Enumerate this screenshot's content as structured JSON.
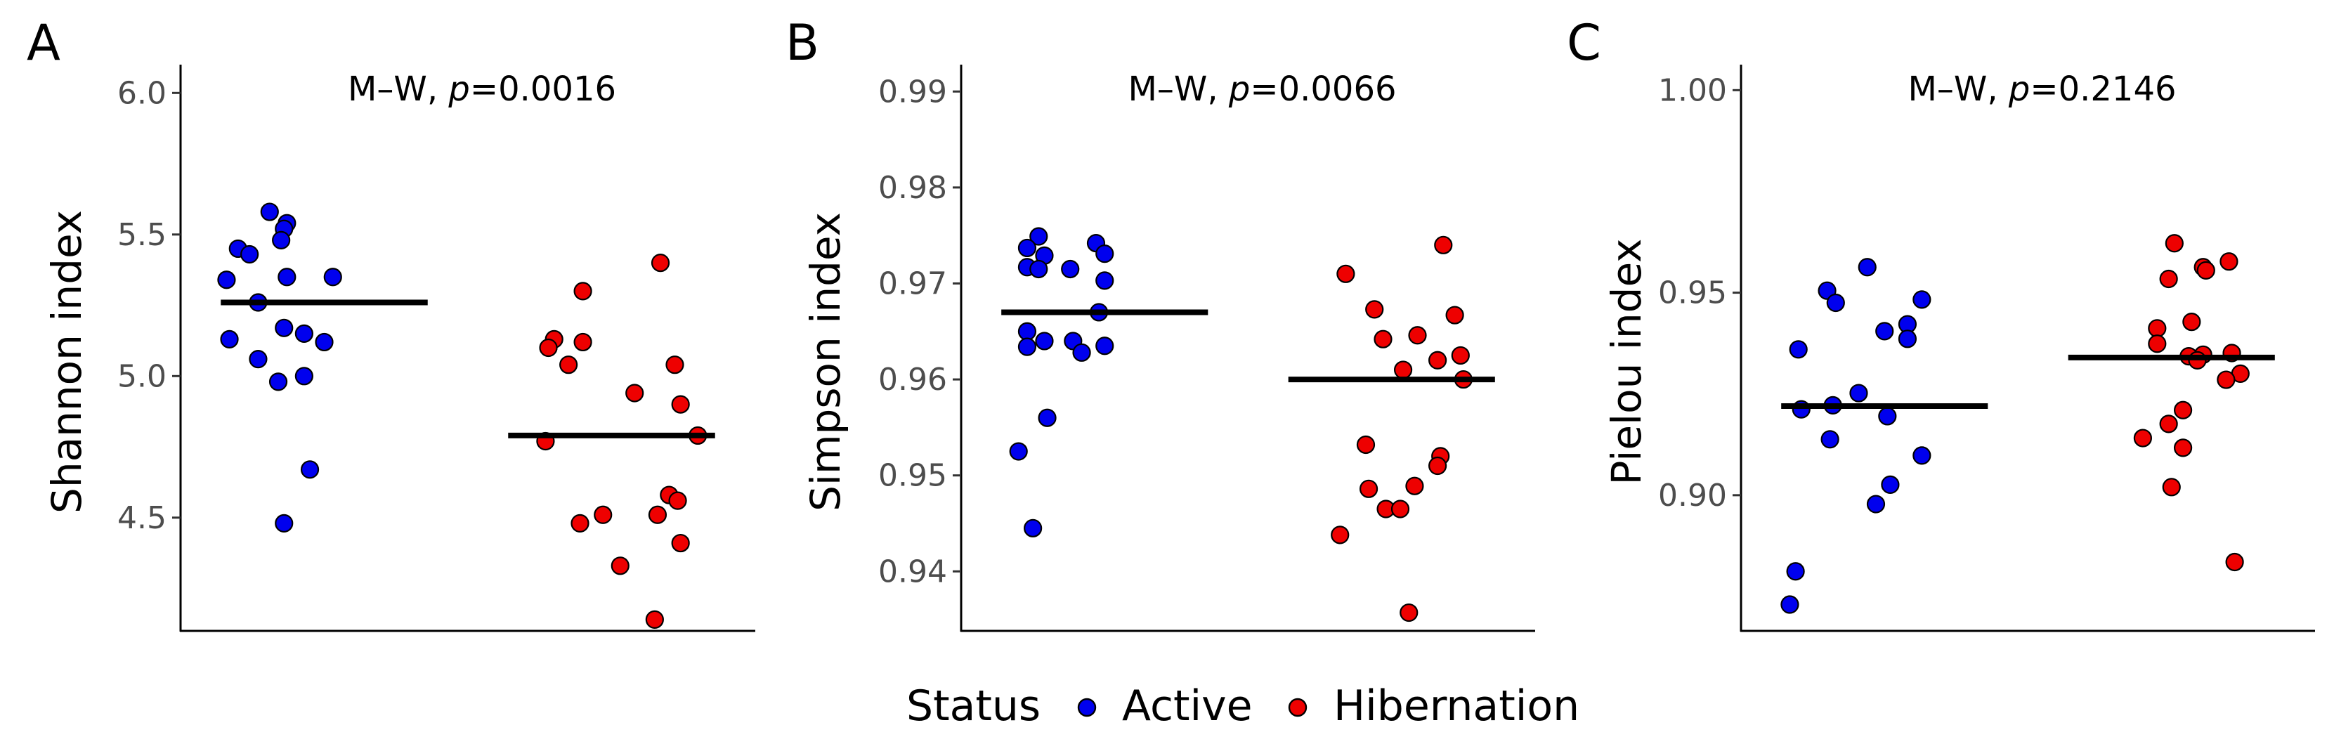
{
  "chart_data": [
    {
      "type": "scatter",
      "panel_label": "A",
      "title": "",
      "xlabel": "",
      "ylabel": "Shannon index",
      "ylim": [
        4.1,
        6.1
      ],
      "yticks": [
        4.5,
        5.0,
        5.5,
        6.0
      ],
      "ytick_labels": [
        "4.5",
        "5.0",
        "5.5",
        "6.0"
      ],
      "annotation_prefix": "M–W, ",
      "annotation_p": "p",
      "annotation_value": "=0.0016",
      "groups": [
        "Active",
        "Hibernation"
      ],
      "series": [
        {
          "name": "Active",
          "mean": 5.26,
          "points": [
            {
              "jitter": -0.19,
              "y": 5.58
            },
            {
              "jitter": -0.13,
              "y": 5.54
            },
            {
              "jitter": -0.14,
              "y": 5.52
            },
            {
              "jitter": -0.3,
              "y": 5.45
            },
            {
              "jitter": -0.26,
              "y": 5.43
            },
            {
              "jitter": -0.15,
              "y": 5.48
            },
            {
              "jitter": -0.13,
              "y": 5.35
            },
            {
              "jitter": 0.03,
              "y": 5.35
            },
            {
              "jitter": -0.34,
              "y": 5.34
            },
            {
              "jitter": -0.23,
              "y": 5.26
            },
            {
              "jitter": -0.14,
              "y": 5.17
            },
            {
              "jitter": -0.07,
              "y": 5.15
            },
            {
              "jitter": -0.33,
              "y": 5.13
            },
            {
              "jitter": 0.0,
              "y": 5.12
            },
            {
              "jitter": -0.23,
              "y": 5.06
            },
            {
              "jitter": -0.07,
              "y": 5.0
            },
            {
              "jitter": -0.16,
              "y": 4.98
            },
            {
              "jitter": -0.05,
              "y": 4.67
            },
            {
              "jitter": -0.14,
              "y": 4.48
            }
          ]
        },
        {
          "name": "Hibernation",
          "mean": 4.79,
          "points": [
            {
              "jitter": 0.17,
              "y": 5.4
            },
            {
              "jitter": -0.1,
              "y": 5.3
            },
            {
              "jitter": -0.2,
              "y": 5.13
            },
            {
              "jitter": -0.1,
              "y": 5.12
            },
            {
              "jitter": -0.22,
              "y": 5.1
            },
            {
              "jitter": -0.15,
              "y": 5.04
            },
            {
              "jitter": 0.22,
              "y": 5.04
            },
            {
              "jitter": 0.08,
              "y": 4.94
            },
            {
              "jitter": 0.24,
              "y": 4.9
            },
            {
              "jitter": 0.3,
              "y": 4.79
            },
            {
              "jitter": -0.23,
              "y": 4.77
            },
            {
              "jitter": 0.2,
              "y": 4.58
            },
            {
              "jitter": 0.23,
              "y": 4.56
            },
            {
              "jitter": 0.16,
              "y": 4.51
            },
            {
              "jitter": -0.03,
              "y": 4.51
            },
            {
              "jitter": -0.11,
              "y": 4.48
            },
            {
              "jitter": 0.24,
              "y": 4.41
            },
            {
              "jitter": 0.03,
              "y": 4.33
            },
            {
              "jitter": 0.15,
              "y": 4.14
            }
          ]
        }
      ]
    },
    {
      "type": "scatter",
      "panel_label": "B",
      "title": "",
      "xlabel": "",
      "ylabel": "Simpson index",
      "ylim": [
        0.9338,
        0.9928
      ],
      "yticks": [
        0.94,
        0.95,
        0.96,
        0.97,
        0.98,
        0.99
      ],
      "ytick_labels": [
        "0.94",
        "0.95",
        "0.96",
        "0.97",
        "0.98",
        "0.99"
      ],
      "annotation_prefix": "M–W, ",
      "annotation_p": "p",
      "annotation_value": "=0.0066",
      "groups": [
        "Active",
        "Hibernation"
      ],
      "series": [
        {
          "name": "Active",
          "mean": 0.967,
          "points": [
            {
              "jitter": -0.23,
              "y": 0.9749
            },
            {
              "jitter": -0.03,
              "y": 0.9742
            },
            {
              "jitter": -0.27,
              "y": 0.9737
            },
            {
              "jitter": 0.0,
              "y": 0.9731
            },
            {
              "jitter": -0.21,
              "y": 0.9729
            },
            {
              "jitter": -0.27,
              "y": 0.9717
            },
            {
              "jitter": -0.12,
              "y": 0.9715
            },
            {
              "jitter": -0.23,
              "y": 0.9715
            },
            {
              "jitter": 0.0,
              "y": 0.9703
            },
            {
              "jitter": -0.02,
              "y": 0.967
            },
            {
              "jitter": -0.27,
              "y": 0.965
            },
            {
              "jitter": -0.11,
              "y": 0.964
            },
            {
              "jitter": -0.21,
              "y": 0.964
            },
            {
              "jitter": 0.0,
              "y": 0.9635
            },
            {
              "jitter": -0.27,
              "y": 0.9634
            },
            {
              "jitter": -0.08,
              "y": 0.9628
            },
            {
              "jitter": -0.2,
              "y": 0.956
            },
            {
              "jitter": -0.3,
              "y": 0.9525
            },
            {
              "jitter": -0.25,
              "y": 0.9445
            }
          ]
        },
        {
          "name": "Hibernation",
          "mean": 0.96,
          "points": [
            {
              "jitter": 0.18,
              "y": 0.974
            },
            {
              "jitter": -0.16,
              "y": 0.971
            },
            {
              "jitter": -0.06,
              "y": 0.9673
            },
            {
              "jitter": 0.22,
              "y": 0.9667
            },
            {
              "jitter": 0.09,
              "y": 0.9646
            },
            {
              "jitter": -0.03,
              "y": 0.9642
            },
            {
              "jitter": 0.24,
              "y": 0.9625
            },
            {
              "jitter": 0.16,
              "y": 0.962
            },
            {
              "jitter": 0.04,
              "y": 0.961
            },
            {
              "jitter": 0.25,
              "y": 0.96
            },
            {
              "jitter": -0.09,
              "y": 0.9532
            },
            {
              "jitter": 0.17,
              "y": 0.952
            },
            {
              "jitter": 0.16,
              "y": 0.951
            },
            {
              "jitter": 0.08,
              "y": 0.9489
            },
            {
              "jitter": -0.08,
              "y": 0.9486
            },
            {
              "jitter": -0.02,
              "y": 0.9465
            },
            {
              "jitter": 0.03,
              "y": 0.9465
            },
            {
              "jitter": -0.18,
              "y": 0.9438
            },
            {
              "jitter": 0.06,
              "y": 0.9357
            }
          ]
        }
      ]
    },
    {
      "type": "scatter",
      "panel_label": "C",
      "title": "",
      "xlabel": "",
      "ylabel": "Pielou index",
      "ylim": [
        0.8665,
        1.0063
      ],
      "yticks": [
        0.9,
        0.95,
        1.0
      ],
      "ytick_labels": [
        "0.90",
        "0.95",
        "1.00"
      ],
      "annotation_prefix": "M–W, ",
      "annotation_p": "p",
      "annotation_value": "=0.2146",
      "groups": [
        "Active",
        "Hibernation"
      ],
      "series": [
        {
          "name": "Active",
          "mean": 0.922,
          "points": [
            {
              "jitter": -0.06,
              "y": 0.9563
            },
            {
              "jitter": -0.2,
              "y": 0.9505
            },
            {
              "jitter": -0.17,
              "y": 0.9475
            },
            {
              "jitter": 0.13,
              "y": 0.9483
            },
            {
              "jitter": 0.08,
              "y": 0.9422
            },
            {
              "jitter": 0.0,
              "y": 0.9405
            },
            {
              "jitter": 0.08,
              "y": 0.9386
            },
            {
              "jitter": -0.3,
              "y": 0.936
            },
            {
              "jitter": -0.09,
              "y": 0.9252
            },
            {
              "jitter": -0.18,
              "y": 0.9222
            },
            {
              "jitter": -0.29,
              "y": 0.9212
            },
            {
              "jitter": 0.01,
              "y": 0.9195
            },
            {
              "jitter": -0.19,
              "y": 0.9138
            },
            {
              "jitter": 0.13,
              "y": 0.9098
            },
            {
              "jitter": 0.02,
              "y": 0.9026
            },
            {
              "jitter": -0.03,
              "y": 0.8978
            },
            {
              "jitter": -0.31,
              "y": 0.8812
            },
            {
              "jitter": -0.33,
              "y": 0.873
            }
          ]
        },
        {
          "name": "Hibernation",
          "mean": 0.934,
          "points": [
            {
              "jitter": 0.01,
              "y": 0.9622
            },
            {
              "jitter": 0.2,
              "y": 0.9577
            },
            {
              "jitter": 0.11,
              "y": 0.9563
            },
            {
              "jitter": 0.12,
              "y": 0.9555
            },
            {
              "jitter": -0.01,
              "y": 0.9534
            },
            {
              "jitter": 0.07,
              "y": 0.9428
            },
            {
              "jitter": -0.05,
              "y": 0.9412
            },
            {
              "jitter": -0.05,
              "y": 0.9374
            },
            {
              "jitter": 0.21,
              "y": 0.9351
            },
            {
              "jitter": 0.11,
              "y": 0.9347
            },
            {
              "jitter": 0.06,
              "y": 0.9343
            },
            {
              "jitter": 0.09,
              "y": 0.9333
            },
            {
              "jitter": 0.24,
              "y": 0.93
            },
            {
              "jitter": 0.19,
              "y": 0.9285
            },
            {
              "jitter": 0.04,
              "y": 0.921
            },
            {
              "jitter": -0.01,
              "y": 0.9176
            },
            {
              "jitter": -0.1,
              "y": 0.9141
            },
            {
              "jitter": 0.04,
              "y": 0.9117
            },
            {
              "jitter": 0.0,
              "y": 0.902
            },
            {
              "jitter": 0.22,
              "y": 0.8835
            }
          ]
        }
      ]
    }
  ],
  "legend": {
    "title": "Status",
    "entries": [
      {
        "label": "Active",
        "color": "#0000ee"
      },
      {
        "label": "Hibernation",
        "color": "#ee0000"
      }
    ],
    "placement": "bottom"
  },
  "colors": {
    "Active": "#0000ee",
    "Hibernation": "#ee0000",
    "mean_line": "#000000",
    "axis": "#000000",
    "point_edge": "#000000"
  }
}
